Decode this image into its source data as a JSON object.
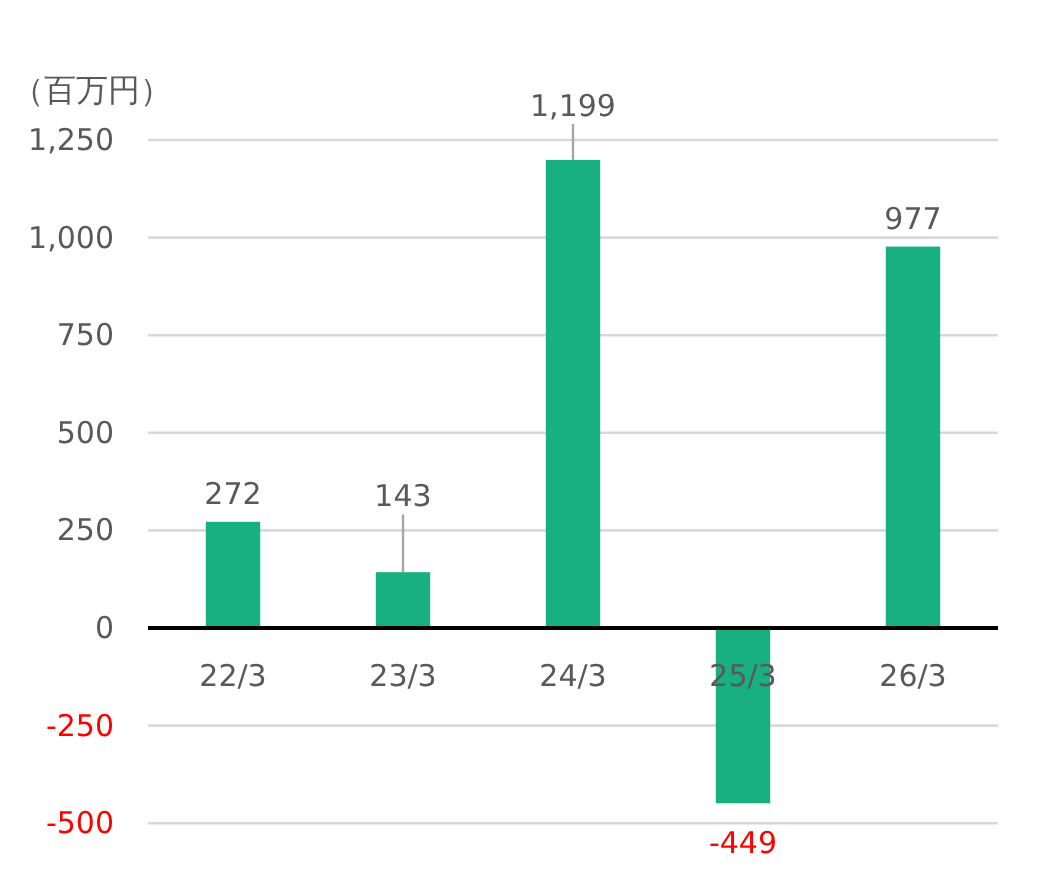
{
  "chart_data": {
    "type": "bar",
    "ylabel": "（百万円）",
    "categories": [
      "22/3",
      "23/3",
      "24/3",
      "25/3",
      "26/3"
    ],
    "values": [
      272,
      143,
      1199,
      -449,
      977
    ],
    "value_labels": [
      "272",
      "143",
      "1,199",
      "-449",
      "977"
    ],
    "color": "#18b080",
    "ylim": [
      -500,
      1250
    ],
    "yticks": [
      -500,
      -250,
      0,
      250,
      500,
      750,
      {
        "value": 1000,
        "label": "1,000"
      },
      {
        "value": 1250,
        "label": "1,250"
      }
    ],
    "grid": "y"
  }
}
